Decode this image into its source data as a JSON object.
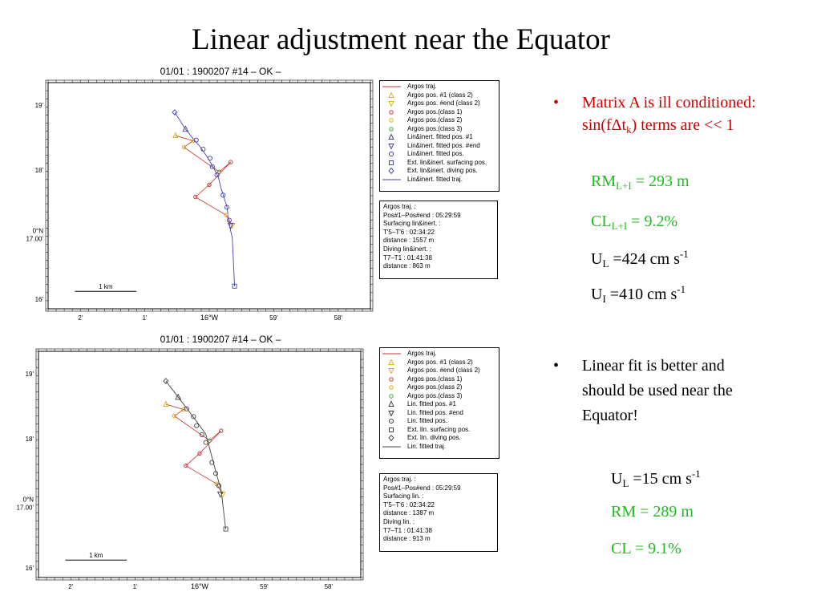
{
  "title": "Linear adjustment near the Equator",
  "right": {
    "bullet1_line1": "Matrix A is ill conditioned:",
    "bullet1_line2_pre": "sin(fΔt",
    "bullet1_line2_sub": "k",
    "bullet1_line2_post": ") terms are << 1",
    "rm_li_pre": "RM",
    "rm_li_sub": "L+I",
    "rm_li_post": " = 293 m",
    "cl_li_pre": "CL",
    "cl_li_sub": "L+I",
    "cl_li_post": "  = 9.2%",
    "ul1_pre": "U",
    "ul1_sub": "L",
    "ul1_post": " =424 cm s",
    "ul1_sup": "-1",
    "ui_pre": "U",
    "ui_sub": "I",
    "ui_post": " =410 cm s",
    "ui_sup": "-1",
    "bullet2_line1": "Linear fit is better and",
    "bullet2_line2": "should be used near the",
    "bullet2_line3": "Equator!",
    "ul2_pre": "U",
    "ul2_sub": "L",
    "ul2_post": " =15 cm s",
    "ul2_sup": "-1",
    "rm2": "RM = 289 m",
    "cl2": "CL =  9.1%",
    "colors": {
      "red": "#cc0000",
      "green": "#22bb22",
      "black": "#000000"
    }
  },
  "chart_data": [
    {
      "type": "scatter",
      "title": "01/01 : 1900207 #14 – OK –",
      "x_ticks": [
        "2'",
        "1'",
        "16°W",
        "59'",
        "58'"
      ],
      "y_ticks": [
        "19'",
        "18'",
        "0°N\n17.00'",
        "16'"
      ],
      "scale_label": "1 km",
      "legend": [
        {
          "label": "Argos traj.",
          "symbol": "line",
          "color": "#cc3333"
        },
        {
          "label": "Argos pos. #1 (class 2)",
          "symbol": "triangle-up",
          "color": "#e0b000"
        },
        {
          "label": "Argos pos. #end (class 2)",
          "symbol": "triangle-down",
          "color": "#e0b000"
        },
        {
          "label": "Argos pos.(class 1)",
          "symbol": "circle",
          "color": "#cc3333"
        },
        {
          "label": "Argos pos.(class 2)",
          "symbol": "circle",
          "color": "#e0b000"
        },
        {
          "label": "Argos pos.(class 3)",
          "symbol": "circle",
          "color": "#33aa33"
        },
        {
          "label": "Lin&inert. fitted pos. #1",
          "symbol": "triangle-up",
          "color": "#333399"
        },
        {
          "label": "Lin&inert. fitted pos. #end",
          "symbol": "triangle-down",
          "color": "#333399"
        },
        {
          "label": "Lin&inert. fitted pos.",
          "symbol": "circle-open",
          "color": "#333399"
        },
        {
          "label": "Ext. lin&inert. surfacing pos.",
          "symbol": "square",
          "color": "#333399"
        },
        {
          "label": "Ext. lin&inert. diving pos.",
          "symbol": "diamond",
          "color": "#333399"
        },
        {
          "label": "Lin&inert. fitted traj.",
          "symbol": "line",
          "color": "#4444aa"
        }
      ],
      "info": [
        "Argos traj. :",
        "Pos#1–Pos#end : 05:29:59",
        "Surfacing lin&inert. :",
        "T'5–T'6 : 02:34:22",
        "distance : 1557 m",
        "Diving lin&inert. :",
        "T7–T1 : 01:41:38",
        "distance : 863 m"
      ],
      "fitted_color": "#4444aa",
      "argos_traj": [
        [
          -1.24,
          18.53
        ],
        [
          -1.01,
          18.45
        ],
        [
          -1.13,
          18.35
        ],
        [
          -0.67,
          17.97
        ],
        [
          -0.52,
          18.12
        ],
        [
          -0.8,
          17.77
        ],
        [
          -0.98,
          17.58
        ],
        [
          -0.58,
          17.3
        ],
        [
          -0.5,
          17.14
        ]
      ],
      "argos_points": [
        {
          "x": -1.24,
          "y": 18.53,
          "symbol": "triangle-up",
          "color": "#e0b000"
        },
        {
          "x": -1.01,
          "y": 18.45,
          "symbol": "circle",
          "color": "#e0b000"
        },
        {
          "x": -1.13,
          "y": 18.35,
          "symbol": "circle",
          "color": "#e0b000"
        },
        {
          "x": -0.67,
          "y": 17.97,
          "symbol": "circle",
          "color": "#33aa33"
        },
        {
          "x": -0.52,
          "y": 18.12,
          "symbol": "circle",
          "color": "#cc3333"
        },
        {
          "x": -0.8,
          "y": 17.77,
          "symbol": "circle",
          "color": "#cc3333"
        },
        {
          "x": -0.98,
          "y": 17.58,
          "symbol": "circle",
          "color": "#cc3333"
        },
        {
          "x": -0.58,
          "y": 17.3,
          "symbol": "circle",
          "color": "#e0b000"
        },
        {
          "x": -0.5,
          "y": 17.14,
          "symbol": "triangle-down",
          "color": "#e0b000"
        }
      ],
      "fitted_traj": [
        [
          -1.25,
          18.89
        ],
        [
          -1.11,
          18.63
        ],
        [
          -1.0,
          18.47
        ],
        [
          -0.92,
          18.36
        ],
        [
          -0.85,
          18.24
        ],
        [
          -0.79,
          18.13
        ],
        [
          -0.73,
          18.0
        ],
        [
          -0.68,
          17.88
        ],
        [
          -0.65,
          17.73
        ],
        [
          -0.61,
          17.58
        ],
        [
          -0.57,
          17.43
        ],
        [
          -0.55,
          17.25
        ],
        [
          -0.53,
          17.1
        ],
        [
          -0.5,
          16.95
        ],
        [
          -0.47,
          16.2
        ]
      ],
      "fitted_points": [
        {
          "x": -1.25,
          "y": 18.89,
          "symbol": "diamond"
        },
        {
          "x": -1.11,
          "y": 18.63,
          "symbol": "triangle-up"
        },
        {
          "x": -0.97,
          "y": 18.46,
          "symbol": "circle-open"
        },
        {
          "x": -0.88,
          "y": 18.32,
          "symbol": "circle-open"
        },
        {
          "x": -0.79,
          "y": 18.18,
          "symbol": "circle-open"
        },
        {
          "x": -0.76,
          "y": 18.05,
          "symbol": "circle-open"
        },
        {
          "x": -0.7,
          "y": 17.92,
          "symbol": "circle-open"
        },
        {
          "x": -0.62,
          "y": 17.61,
          "symbol": "circle-open"
        },
        {
          "x": -0.57,
          "y": 17.42,
          "symbol": "circle-open"
        },
        {
          "x": -0.54,
          "y": 17.22,
          "symbol": "circle-open"
        },
        {
          "x": -0.52,
          "y": 17.14,
          "symbol": "triangle-down"
        },
        {
          "x": -0.47,
          "y": 16.2,
          "symbol": "square"
        }
      ]
    },
    {
      "type": "scatter",
      "title": "01/01 : 1900207 #14 – OK –",
      "x_ticks": [
        "2'",
        "1'",
        "16°W",
        "59'",
        "58'"
      ],
      "y_ticks": [
        "19'",
        "18'",
        "0°N\n17.00'",
        "16'"
      ],
      "scale_label": "1 km",
      "legend": [
        {
          "label": "Argos traj.",
          "symbol": "line",
          "color": "#cc3333"
        },
        {
          "label": "Argos pos. #1 (class 2)",
          "symbol": "triangle-up",
          "color": "#e0b000"
        },
        {
          "label": "Argos pos. #end (class 2)",
          "symbol": "triangle-down",
          "color": "#e0b000"
        },
        {
          "label": "Argos pos.(class 1)",
          "symbol": "circle",
          "color": "#cc3333"
        },
        {
          "label": "Argos pos.(class 2)",
          "symbol": "circle",
          "color": "#e0b000"
        },
        {
          "label": "Argos pos.(class 3)",
          "symbol": "circle",
          "color": "#33aa33"
        },
        {
          "label": "Lin. fitted pos. #1",
          "symbol": "triangle-up",
          "color": "#333333"
        },
        {
          "label": "Lin. fitted pos. #end",
          "symbol": "triangle-down",
          "color": "#333333"
        },
        {
          "label": "Lin. fitted pos.",
          "symbol": "circle-open",
          "color": "#333333"
        },
        {
          "label": "Ext. lin. surfacing pos.",
          "symbol": "square",
          "color": "#333333"
        },
        {
          "label": "Ext. lin. diving pos.",
          "symbol": "diamond",
          "color": "#333333"
        },
        {
          "label": "Lin. fitted traj.",
          "symbol": "line",
          "color": "#444444"
        }
      ],
      "info": [
        "Argos traj. :",
        "Pos#1–Pos#end : 05:29:59",
        "Surfacing lin. :",
        "T'5–T'6 : 02:34:22",
        "distance : 1387 m",
        "Diving lin. :",
        "T7–T1 : 01:41:38",
        "distance : 913 m"
      ],
      "fitted_color": "#444444",
      "argos_traj": [
        [
          -1.24,
          18.53
        ],
        [
          -1.01,
          18.45
        ],
        [
          -1.13,
          18.35
        ],
        [
          -0.67,
          17.97
        ],
        [
          -0.52,
          18.12
        ],
        [
          -0.8,
          17.77
        ],
        [
          -0.98,
          17.58
        ],
        [
          -0.58,
          17.3
        ],
        [
          -0.5,
          17.14
        ]
      ],
      "argos_points": [
        {
          "x": -1.24,
          "y": 18.53,
          "symbol": "triangle-up",
          "color": "#e0b000"
        },
        {
          "x": -1.01,
          "y": 18.45,
          "symbol": "circle",
          "color": "#e0b000"
        },
        {
          "x": -1.13,
          "y": 18.35,
          "symbol": "circle",
          "color": "#e0b000"
        },
        {
          "x": -0.67,
          "y": 17.97,
          "symbol": "circle",
          "color": "#33aa33"
        },
        {
          "x": -0.52,
          "y": 18.12,
          "symbol": "circle",
          "color": "#cc3333"
        },
        {
          "x": -0.8,
          "y": 17.77,
          "symbol": "circle",
          "color": "#cc3333"
        },
        {
          "x": -0.98,
          "y": 17.58,
          "symbol": "circle",
          "color": "#cc3333"
        },
        {
          "x": -0.58,
          "y": 17.3,
          "symbol": "circle",
          "color": "#e0b000"
        },
        {
          "x": -0.5,
          "y": 17.14,
          "symbol": "triangle-down",
          "color": "#e0b000"
        }
      ],
      "fitted_traj": [
        [
          -1.24,
          18.89
        ],
        [
          -1.04,
          18.58
        ],
        [
          -0.88,
          18.33
        ],
        [
          -0.72,
          18.07
        ],
        [
          -0.58,
          17.45
        ],
        [
          -0.52,
          17.2
        ],
        [
          -0.46,
          16.6
        ]
      ],
      "fitted_points": [
        {
          "x": -1.24,
          "y": 18.89,
          "symbol": "diamond"
        },
        {
          "x": -1.08,
          "y": 18.64,
          "symbol": "triangle-up"
        },
        {
          "x": -0.97,
          "y": 18.46,
          "symbol": "circle-open"
        },
        {
          "x": -0.88,
          "y": 18.34,
          "symbol": "circle-open"
        },
        {
          "x": -0.84,
          "y": 18.2,
          "symbol": "circle-open"
        },
        {
          "x": -0.77,
          "y": 18.06,
          "symbol": "circle-open"
        },
        {
          "x": -0.72,
          "y": 17.94,
          "symbol": "circle-open"
        },
        {
          "x": -0.64,
          "y": 17.63,
          "symbol": "circle-open"
        },
        {
          "x": -0.59,
          "y": 17.46,
          "symbol": "circle-open"
        },
        {
          "x": -0.55,
          "y": 17.27,
          "symbol": "circle-open"
        },
        {
          "x": -0.53,
          "y": 17.14,
          "symbol": "triangle-down"
        },
        {
          "x": -0.46,
          "y": 16.6,
          "symbol": "square"
        }
      ]
    }
  ]
}
